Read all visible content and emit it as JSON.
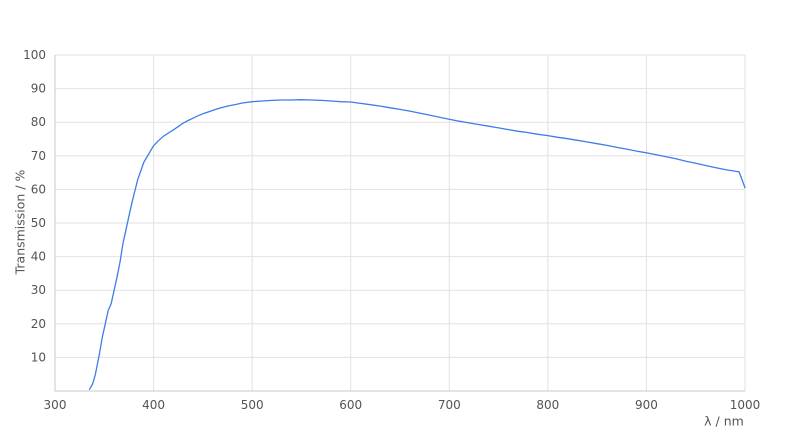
{
  "chart_data": {
    "type": "line",
    "title": "",
    "xlabel": "λ / nm",
    "ylabel": "Transmission / %",
    "xlim": [
      300,
      1000
    ],
    "ylim": [
      0,
      100
    ],
    "x_ticks": [
      300,
      400,
      500,
      600,
      700,
      800,
      900,
      1000
    ],
    "y_ticks": [
      10,
      20,
      30,
      40,
      50,
      60,
      70,
      80,
      90,
      100
    ],
    "grid": true,
    "legend_position": "none",
    "series": [
      {
        "name": "transmission",
        "color": "#3e7de7",
        "points": [
          [
            335,
            0.5
          ],
          [
            338,
            2
          ],
          [
            341,
            5
          ],
          [
            343,
            8
          ],
          [
            345,
            11
          ],
          [
            348,
            16
          ],
          [
            351,
            20
          ],
          [
            354,
            24
          ],
          [
            357,
            26
          ],
          [
            360,
            30
          ],
          [
            363,
            34
          ],
          [
            366,
            38.5
          ],
          [
            369,
            44
          ],
          [
            372,
            48
          ],
          [
            375,
            52
          ],
          [
            378,
            56
          ],
          [
            381,
            59.5
          ],
          [
            384,
            63
          ],
          [
            387,
            65.5
          ],
          [
            390,
            68
          ],
          [
            393,
            69.5
          ],
          [
            396,
            71
          ],
          [
            400,
            73
          ],
          [
            405,
            74.5
          ],
          [
            410,
            75.8
          ],
          [
            415,
            76.8
          ],
          [
            420,
            77.7
          ],
          [
            425,
            78.7
          ],
          [
            430,
            79.7
          ],
          [
            435,
            80.5
          ],
          [
            440,
            81.2
          ],
          [
            445,
            81.9
          ],
          [
            450,
            82.5
          ],
          [
            455,
            83
          ],
          [
            460,
            83.5
          ],
          [
            465,
            84
          ],
          [
            470,
            84.4
          ],
          [
            475,
            84.8
          ],
          [
            480,
            85.1
          ],
          [
            485,
            85.4
          ],
          [
            490,
            85.7
          ],
          [
            495,
            85.9
          ],
          [
            500,
            86.1
          ],
          [
            510,
            86.3
          ],
          [
            520,
            86.5
          ],
          [
            530,
            86.6
          ],
          [
            540,
            86.6
          ],
          [
            550,
            86.7
          ],
          [
            560,
            86.6
          ],
          [
            570,
            86.5
          ],
          [
            580,
            86.3
          ],
          [
            590,
            86.1
          ],
          [
            600,
            86.0
          ],
          [
            610,
            85.6
          ],
          [
            620,
            85.2
          ],
          [
            630,
            84.8
          ],
          [
            640,
            84.3
          ],
          [
            650,
            83.8
          ],
          [
            660,
            83.3
          ],
          [
            670,
            82.7
          ],
          [
            680,
            82.1
          ],
          [
            690,
            81.5
          ],
          [
            700,
            80.9
          ],
          [
            710,
            80.3
          ],
          [
            720,
            79.8
          ],
          [
            730,
            79.3
          ],
          [
            740,
            78.8
          ],
          [
            750,
            78.3
          ],
          [
            760,
            77.8
          ],
          [
            770,
            77.3
          ],
          [
            780,
            76.9
          ],
          [
            790,
            76.4
          ],
          [
            800,
            76.0
          ],
          [
            810,
            75.5
          ],
          [
            820,
            75.1
          ],
          [
            830,
            74.6
          ],
          [
            840,
            74.1
          ],
          [
            850,
            73.6
          ],
          [
            860,
            73.1
          ],
          [
            870,
            72.5
          ],
          [
            880,
            72.0
          ],
          [
            890,
            71.4
          ],
          [
            900,
            70.9
          ],
          [
            910,
            70.3
          ],
          [
            920,
            69.7
          ],
          [
            930,
            69.1
          ],
          [
            940,
            68.4
          ],
          [
            950,
            67.8
          ],
          [
            960,
            67.1
          ],
          [
            970,
            66.5
          ],
          [
            980,
            65.9
          ],
          [
            988,
            65.5
          ],
          [
            994,
            65.2
          ],
          [
            1000,
            60.5
          ]
        ]
      }
    ]
  },
  "colors": {
    "line": "#3e7de7",
    "gridline": "#e2e2e2",
    "axis_line": "#c9c9c9",
    "tick_text": "#545454",
    "axis_title_text": "#565656",
    "background": "#ffffff"
  }
}
